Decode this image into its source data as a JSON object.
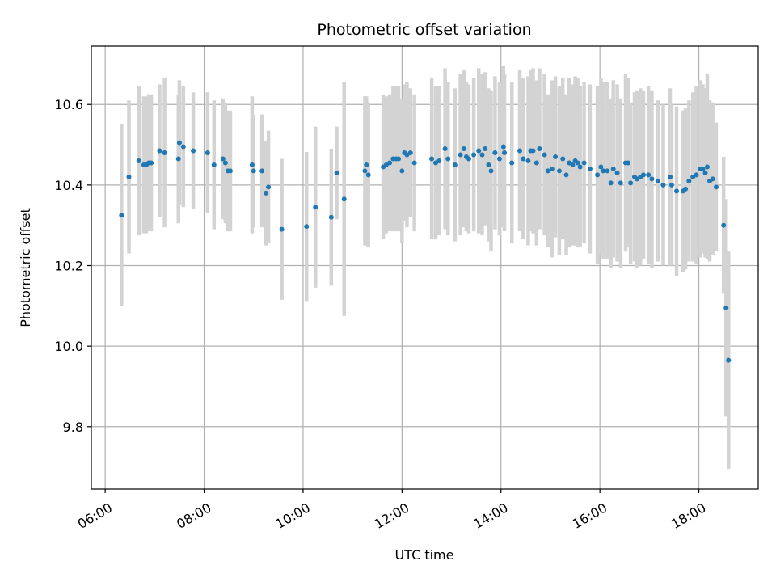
{
  "chart_data": {
    "type": "scatter",
    "title": "Photometric offset variation",
    "xlabel": "UTC time",
    "ylabel": "Photometric offset",
    "x_unit": "hours UTC",
    "xlim": [
      5.72,
      19.2
    ],
    "ylim": [
      9.645,
      10.745
    ],
    "grid": true,
    "xticks": [
      6,
      8,
      10,
      12,
      14,
      16,
      18
    ],
    "xtick_labels": [
      "06:00",
      "08:00",
      "10:00",
      "12:00",
      "14:00",
      "16:00",
      "18:00"
    ],
    "yticks": [
      9.8,
      10.0,
      10.2,
      10.4,
      10.6
    ],
    "ytick_labels": [
      "9.8",
      "10.0",
      "10.2",
      "10.4",
      "10.6"
    ],
    "marker_color": "#1f77b4",
    "errorbar_color": "#d3d3d3",
    "series": [
      {
        "x": [
          6.33,
          6.48,
          6.68,
          6.78,
          6.83,
          6.88,
          6.93,
          7.1,
          7.2,
          7.48,
          7.5,
          7.58,
          7.78,
          8.07,
          8.2,
          8.38,
          8.43,
          8.48,
          8.53,
          8.97,
          9.0,
          9.17,
          9.25,
          9.3,
          9.57,
          10.07,
          10.25,
          10.57,
          10.68,
          10.83,
          11.25,
          11.28,
          11.32,
          11.62,
          11.68,
          11.75,
          11.82,
          11.88,
          11.93,
          12.0,
          12.05,
          12.1,
          12.17,
          12.25,
          12.6,
          12.68,
          12.75,
          12.87,
          12.93,
          13.07,
          13.18,
          13.25,
          13.3,
          13.35,
          13.45,
          13.55,
          13.62,
          13.68,
          13.75,
          13.8,
          13.88,
          13.97,
          14.05,
          14.07,
          14.22,
          14.38,
          14.45,
          14.55,
          14.6,
          14.65,
          14.72,
          14.78,
          14.88,
          14.95,
          15.03,
          15.1,
          15.18,
          15.25,
          15.32,
          15.38,
          15.45,
          15.5,
          15.55,
          15.6,
          15.68,
          15.8,
          15.95,
          16.02,
          16.07,
          16.15,
          16.22,
          16.27,
          16.35,
          16.42,
          16.52,
          16.57,
          16.62,
          16.7,
          16.75,
          16.82,
          16.88,
          16.98,
          17.05,
          17.17,
          17.28,
          17.42,
          17.45,
          17.55,
          17.68,
          17.73,
          17.8,
          17.88,
          17.95,
          18.03,
          18.08,
          18.13,
          18.17,
          18.22,
          18.28,
          18.35,
          18.5,
          18.55,
          18.6
        ],
        "y": [
          10.325,
          10.42,
          10.46,
          10.45,
          10.45,
          10.455,
          10.455,
          10.485,
          10.48,
          10.465,
          10.505,
          10.495,
          10.485,
          10.48,
          10.45,
          10.465,
          10.455,
          10.435,
          10.435,
          10.45,
          10.435,
          10.435,
          10.38,
          10.395,
          10.29,
          10.297,
          10.345,
          10.32,
          10.43,
          10.365,
          10.435,
          10.45,
          10.425,
          10.445,
          10.45,
          10.455,
          10.465,
          10.465,
          10.465,
          10.435,
          10.48,
          10.475,
          10.48,
          10.455,
          10.465,
          10.455,
          10.46,
          10.49,
          10.465,
          10.45,
          10.475,
          10.49,
          10.47,
          10.465,
          10.475,
          10.485,
          10.475,
          10.49,
          10.45,
          10.435,
          10.48,
          10.465,
          10.495,
          10.48,
          10.455,
          10.485,
          10.465,
          10.46,
          10.485,
          10.485,
          10.455,
          10.49,
          10.475,
          10.435,
          10.44,
          10.47,
          10.435,
          10.465,
          10.425,
          10.455,
          10.45,
          10.46,
          10.455,
          10.445,
          10.455,
          10.44,
          10.425,
          10.445,
          10.435,
          10.435,
          10.405,
          10.44,
          10.43,
          10.405,
          10.455,
          10.455,
          10.405,
          10.42,
          10.415,
          10.42,
          10.425,
          10.425,
          10.415,
          10.41,
          10.4,
          10.42,
          10.4,
          10.385,
          10.385,
          10.39,
          10.41,
          10.42,
          10.425,
          10.44,
          10.44,
          10.43,
          10.445,
          10.41,
          10.415,
          10.395,
          10.3,
          10.095,
          9.965
        ],
        "err": [
          0.225,
          0.19,
          0.185,
          0.17,
          0.17,
          0.17,
          0.17,
          0.165,
          0.185,
          0.16,
          0.155,
          0.15,
          0.145,
          0.15,
          0.16,
          0.15,
          0.15,
          0.15,
          0.15,
          0.17,
          0.14,
          0.14,
          0.13,
          0.14,
          0.175,
          0.185,
          0.2,
          0.17,
          0.115,
          0.29,
          0.185,
          0.17,
          0.18,
          0.18,
          0.17,
          0.17,
          0.18,
          0.18,
          0.18,
          0.18,
          0.17,
          0.18,
          0.16,
          0.17,
          0.2,
          0.19,
          0.185,
          0.2,
          0.19,
          0.19,
          0.2,
          0.195,
          0.185,
          0.185,
          0.19,
          0.205,
          0.2,
          0.19,
          0.19,
          0.2,
          0.19,
          0.19,
          0.2,
          0.195,
          0.2,
          0.2,
          0.2,
          0.21,
          0.2,
          0.205,
          0.205,
          0.2,
          0.2,
          0.19,
          0.22,
          0.2,
          0.21,
          0.2,
          0.2,
          0.21,
          0.2,
          0.21,
          0.21,
          0.2,
          0.2,
          0.21,
          0.22,
          0.22,
          0.22,
          0.22,
          0.21,
          0.22,
          0.22,
          0.21,
          0.22,
          0.21,
          0.2,
          0.21,
          0.22,
          0.22,
          0.21,
          0.22,
          0.22,
          0.2,
          0.2,
          0.22,
          0.2,
          0.21,
          0.2,
          0.2,
          0.2,
          0.21,
          0.22,
          0.22,
          0.21,
          0.21,
          0.23,
          0.2,
          0.19,
          0.16,
          0.17,
          0.27,
          0.27
        ]
      }
    ]
  }
}
